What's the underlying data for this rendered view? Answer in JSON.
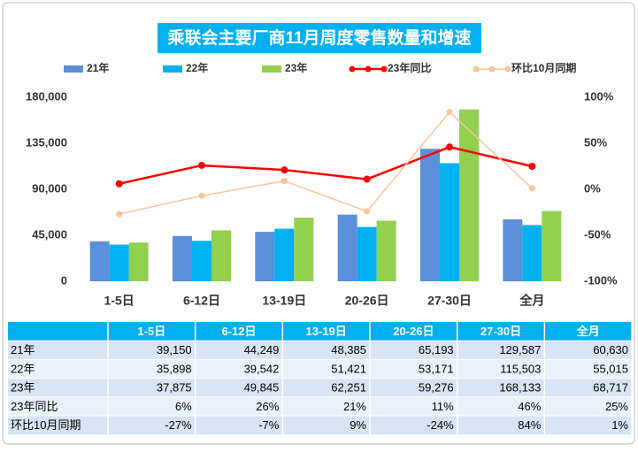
{
  "chart_data": {
    "type": "bar",
    "title": "乘联会主要厂商11月周度零售数量和增速",
    "categories": [
      "1-5日",
      "6-12日",
      "13-19日",
      "20-26日",
      "27-30日",
      "全月"
    ],
    "series": [
      {
        "name": "21年",
        "type": "bar",
        "color": "#5b8fd9",
        "values": [
          39150,
          44249,
          48385,
          65193,
          129587,
          60630
        ],
        "value_labels": [
          "39,150",
          "44,249",
          "48,385",
          "65,193",
          "129,587",
          "60,630"
        ]
      },
      {
        "name": "22年",
        "type": "bar",
        "color": "#00b0f0",
        "values": [
          35898,
          39542,
          51421,
          53171,
          115503,
          55015
        ],
        "value_labels": [
          "35,898",
          "39,542",
          "51,421",
          "53,171",
          "115,503",
          "55,015"
        ]
      },
      {
        "name": "23年",
        "type": "bar",
        "color": "#92d050",
        "values": [
          37875,
          49845,
          62251,
          59276,
          168133,
          68717
        ],
        "value_labels": [
          "37,875",
          "49,845",
          "62,251",
          "59,276",
          "168,133",
          "68,717"
        ]
      },
      {
        "name": "23年同比",
        "type": "line",
        "axis": "y2",
        "color": "#ff0000",
        "values": [
          6,
          26,
          21,
          11,
          46,
          25
        ],
        "value_labels": [
          "6%",
          "26%",
          "21%",
          "11%",
          "46%",
          "25%"
        ]
      },
      {
        "name": "环比10月同期",
        "type": "line",
        "axis": "y2",
        "color": "#f8c49a",
        "values": [
          -27,
          -7,
          9,
          -24,
          84,
          1
        ],
        "value_labels": [
          "-27%",
          "-7%",
          "9%",
          "-24%",
          "84%",
          "1%"
        ]
      }
    ],
    "ylim": [
      0,
      180000
    ],
    "yticks": [
      0,
      {
        "value": 45000,
        "label": "45,000"
      },
      {
        "value": 90000,
        "label": "90,000"
      },
      {
        "value": 135000,
        "label": "135,000"
      },
      {
        "value": 180000,
        "label": "180,000"
      }
    ],
    "y2lim": [
      -100,
      100
    ],
    "y2ticks": [
      {
        "value": -100,
        "label": "-100%"
      },
      {
        "value": -50,
        "label": "-50%"
      },
      {
        "value": 0,
        "label": "0%"
      },
      {
        "value": 50,
        "label": "50%"
      },
      {
        "value": 100,
        "label": "100%"
      }
    ],
    "legend": "top"
  }
}
